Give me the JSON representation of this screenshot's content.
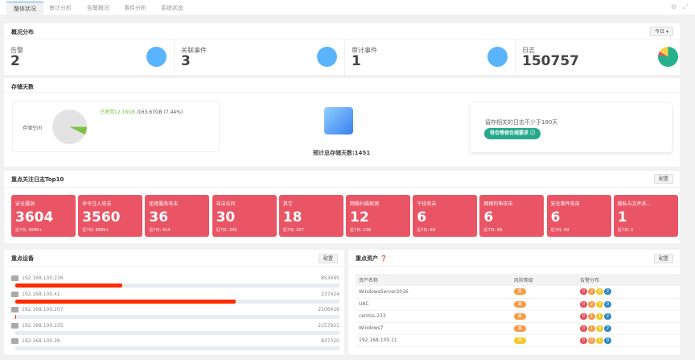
{
  "tabs": [
    "整体状况",
    "审计分析",
    "告警概况",
    "事件分析",
    "系统状态"
  ],
  "overview": {
    "title": "概况分布",
    "range_button": "今日 ▾",
    "stats": [
      {
        "label": "告警",
        "value": "2"
      },
      {
        "label": "关联事件",
        "value": "3"
      },
      {
        "label": "审计事件",
        "value": "1"
      },
      {
        "label": "日志",
        "value": "150757"
      }
    ]
  },
  "storage": {
    "title": "存储天数",
    "space_label": "存储空间",
    "used": "已使用12.18GB",
    "total": " /163.67GB (7.44%)",
    "used_percent": 7.44,
    "estimate": "预计总存储天数:1451",
    "tip": "留存相关的日志不少于180天",
    "badge": "符合等保合规要求"
  },
  "top10": {
    "title": "重点关注日志Top10",
    "config": "配置",
    "cards": [
      {
        "name": "安全漏洞",
        "value": "3604",
        "recent": "近7日:  9999+"
      },
      {
        "name": "命令注入攻击",
        "value": "3560",
        "recent": "近7日:  9999+"
      },
      {
        "name": "拒绝服务攻击",
        "value": "36",
        "recent": "近7日:  414"
      },
      {
        "name": "非法访问",
        "value": "30",
        "recent": "近7日:  345"
      },
      {
        "name": "其它",
        "value": "18",
        "recent": "近7日:  207"
      },
      {
        "name": "网络扫描探测",
        "value": "12",
        "recent": "近7日:  138"
      },
      {
        "name": "干扰攻击",
        "value": "6",
        "recent": "近7日:  69"
      },
      {
        "name": "网络钓鱼攻击",
        "value": "6",
        "recent": "近7日:  69"
      },
      {
        "name": "安全事件攻击",
        "value": "6",
        "recent": "近7日:  69"
      },
      {
        "name": "隐私与文件系...",
        "value": "1",
        "recent": "近7日:  1"
      }
    ]
  },
  "devices": {
    "title": "重点设备",
    "config": "配置",
    "items": [
      {
        "ip": "192.168.100.236",
        "count": "853495",
        "percent": 33
      },
      {
        "ip": "192.168.100.41",
        "count": "237424",
        "percent": 68
      },
      {
        "ip": "192.168.100.207",
        "count": "2106416",
        "percent": 0.3
      },
      {
        "ip": "192.168.100.235",
        "count": "2157921",
        "percent": 0
      },
      {
        "ip": "192.168.100.26",
        "count": "837320",
        "percent": 0
      }
    ]
  },
  "assets": {
    "title": "重点资产",
    "config": "配置",
    "headers": [
      "资产名称",
      "风险等级",
      "告警分布"
    ],
    "rows": [
      {
        "name": "WindowsServer2016",
        "risk": "高",
        "alerts": [
          "0",
          "2",
          "0",
          "2"
        ]
      },
      {
        "name": "UAC",
        "risk": "高",
        "alerts": [
          "0",
          "2",
          "0",
          "0"
        ]
      },
      {
        "name": "centos-233",
        "risk": "高",
        "alerts": [
          "0",
          "1",
          "1",
          "2"
        ]
      },
      {
        "name": "Windows7",
        "risk": "高",
        "alerts": [
          "0",
          "1",
          "0",
          "2"
        ]
      },
      {
        "name": "192.168.100.11",
        "risk": "中",
        "alerts": [
          "0",
          "0",
          "1",
          "0"
        ]
      }
    ]
  },
  "colors": {
    "stat_circle": "#5ab4fb",
    "card": "#ea5565",
    "bar": "#ff2a00",
    "badge": "#26a98a",
    "high": "#f39c44",
    "mid": "#f3c82e",
    "pills": [
      "#ea4c5a",
      "#f39c44",
      "#f3c82e",
      "#2d87c9"
    ]
  }
}
